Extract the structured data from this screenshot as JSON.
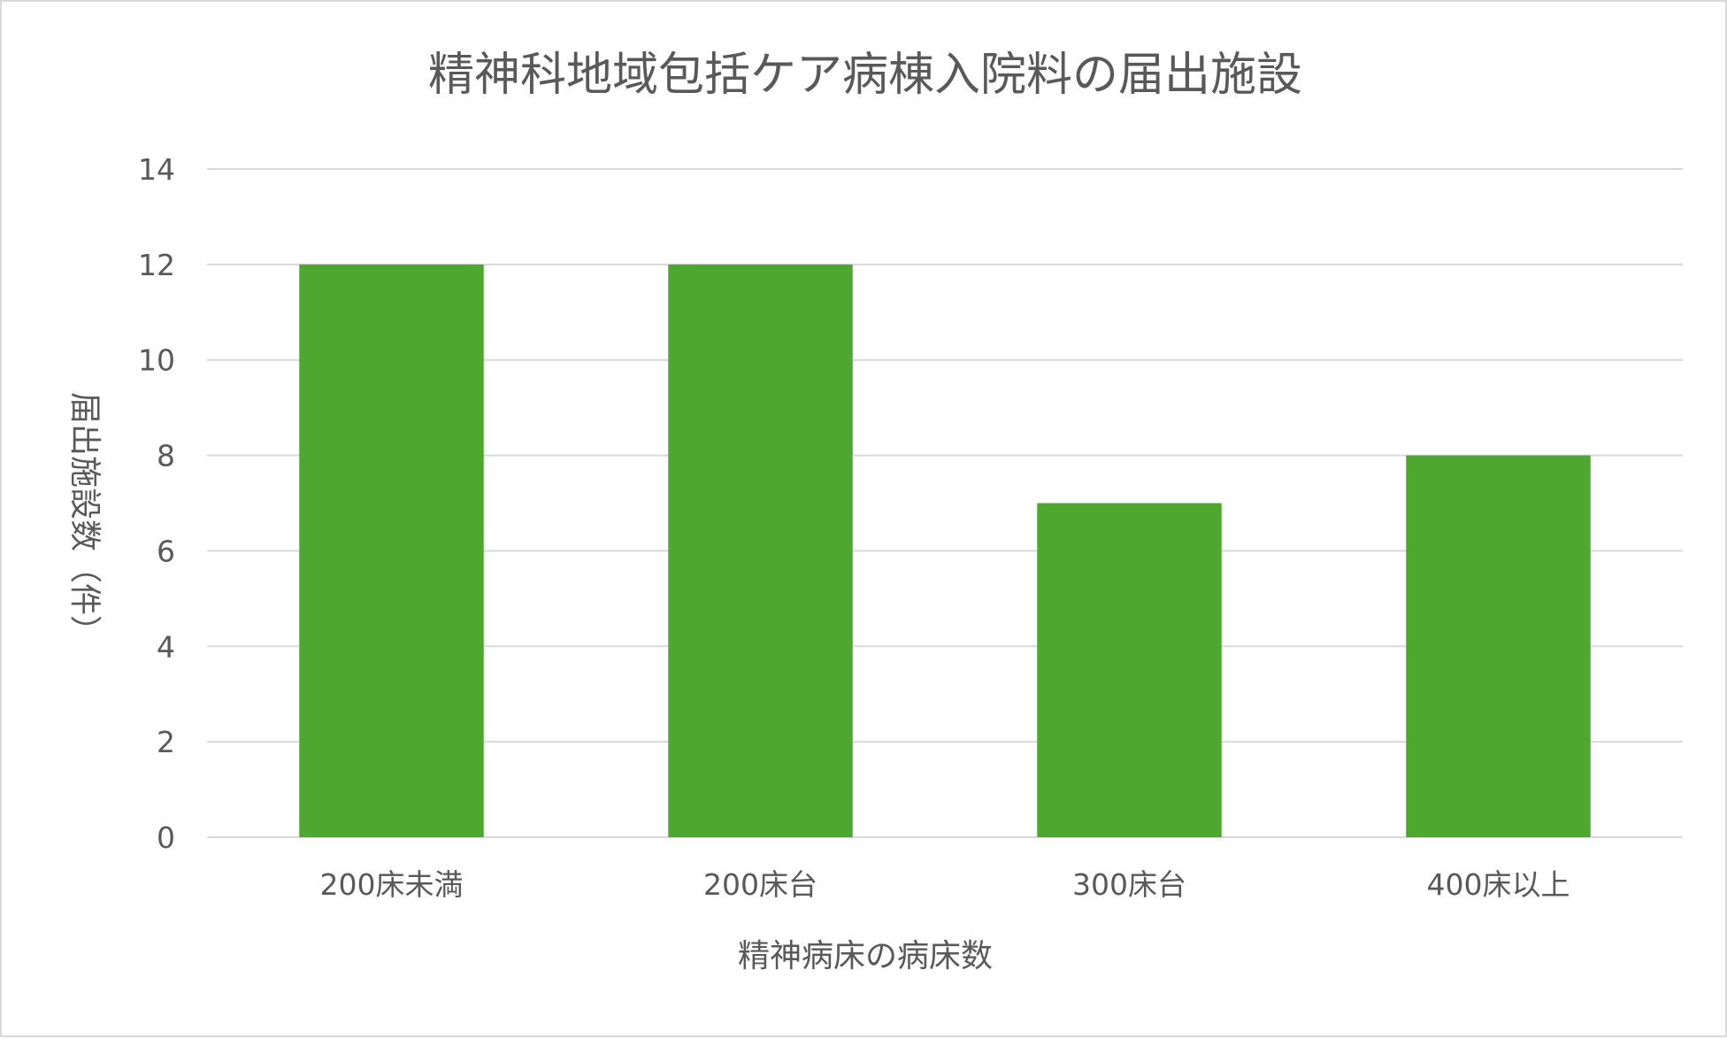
{
  "chart_data": {
    "type": "bar",
    "title": "精神科地域包括ケア病棟入院料の届出施設",
    "xlabel": "精神病床の病床数",
    "ylabel": "届出施設数（件）",
    "categories": [
      "200床未満",
      "200床台",
      "300床台",
      "400床以上"
    ],
    "values": [
      12,
      12,
      7,
      8
    ],
    "ylim": [
      0,
      14
    ],
    "yticks": [
      0,
      2,
      4,
      6,
      8,
      10,
      12,
      14
    ],
    "grid": true,
    "legend": "none",
    "bar_color": "#4ea72e"
  }
}
